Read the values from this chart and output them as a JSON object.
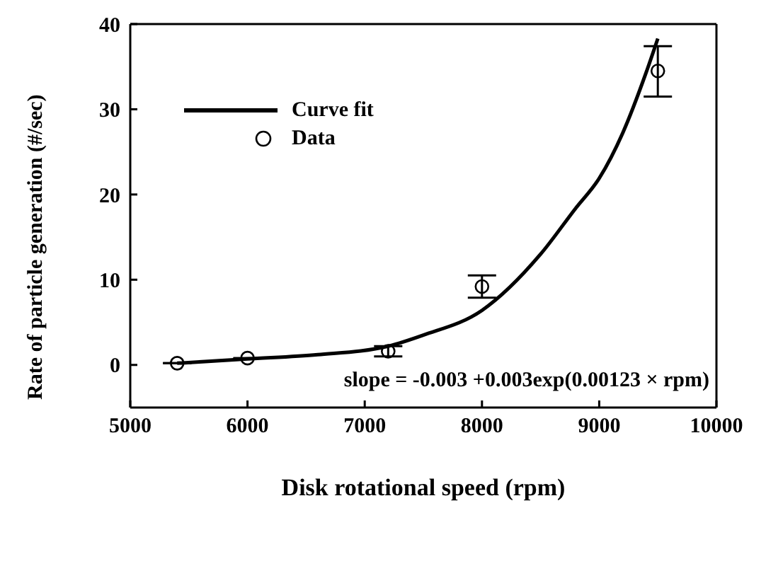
{
  "chart_data": {
    "type": "scatter",
    "xlabel": "Disk rotational speed (rpm)",
    "ylabel": "Rate of particle generation (#/sec)",
    "xlim": [
      5000,
      10000
    ],
    "xticks": [
      5000,
      6000,
      7000,
      8000,
      9000,
      10000
    ],
    "ylim": [
      -5,
      40
    ],
    "yticks": [
      0,
      10,
      20,
      30,
      40
    ],
    "legend": "top left",
    "grid": false,
    "annotations": [
      "slope = -0.003 +0.003exp(0.00123 × rpm)"
    ],
    "series": [
      {
        "name": "Curve fit",
        "type": "line",
        "color": "#000000",
        "marker": "none",
        "x": [
          5400,
          6000,
          6600,
          7200,
          7500,
          8000,
          8500,
          8800,
          9000,
          9200,
          9400,
          9500
        ],
        "values": [
          0.2,
          0.7,
          1.2,
          2.2,
          3.5,
          6.4,
          13,
          18.4,
          21.9,
          27.2,
          34.3,
          38.3
        ]
      },
      {
        "name": "Data",
        "color": "#000000",
        "marker": "circle",
        "x": [
          5400,
          6000,
          7200,
          8000,
          9500
        ],
        "values": [
          0.2,
          0.8,
          1.6,
          9.2,
          34.5
        ],
        "errors": [
          null,
          null,
          0.6,
          1.3,
          [
            31.5,
            37.4
          ]
        ]
      }
    ]
  }
}
